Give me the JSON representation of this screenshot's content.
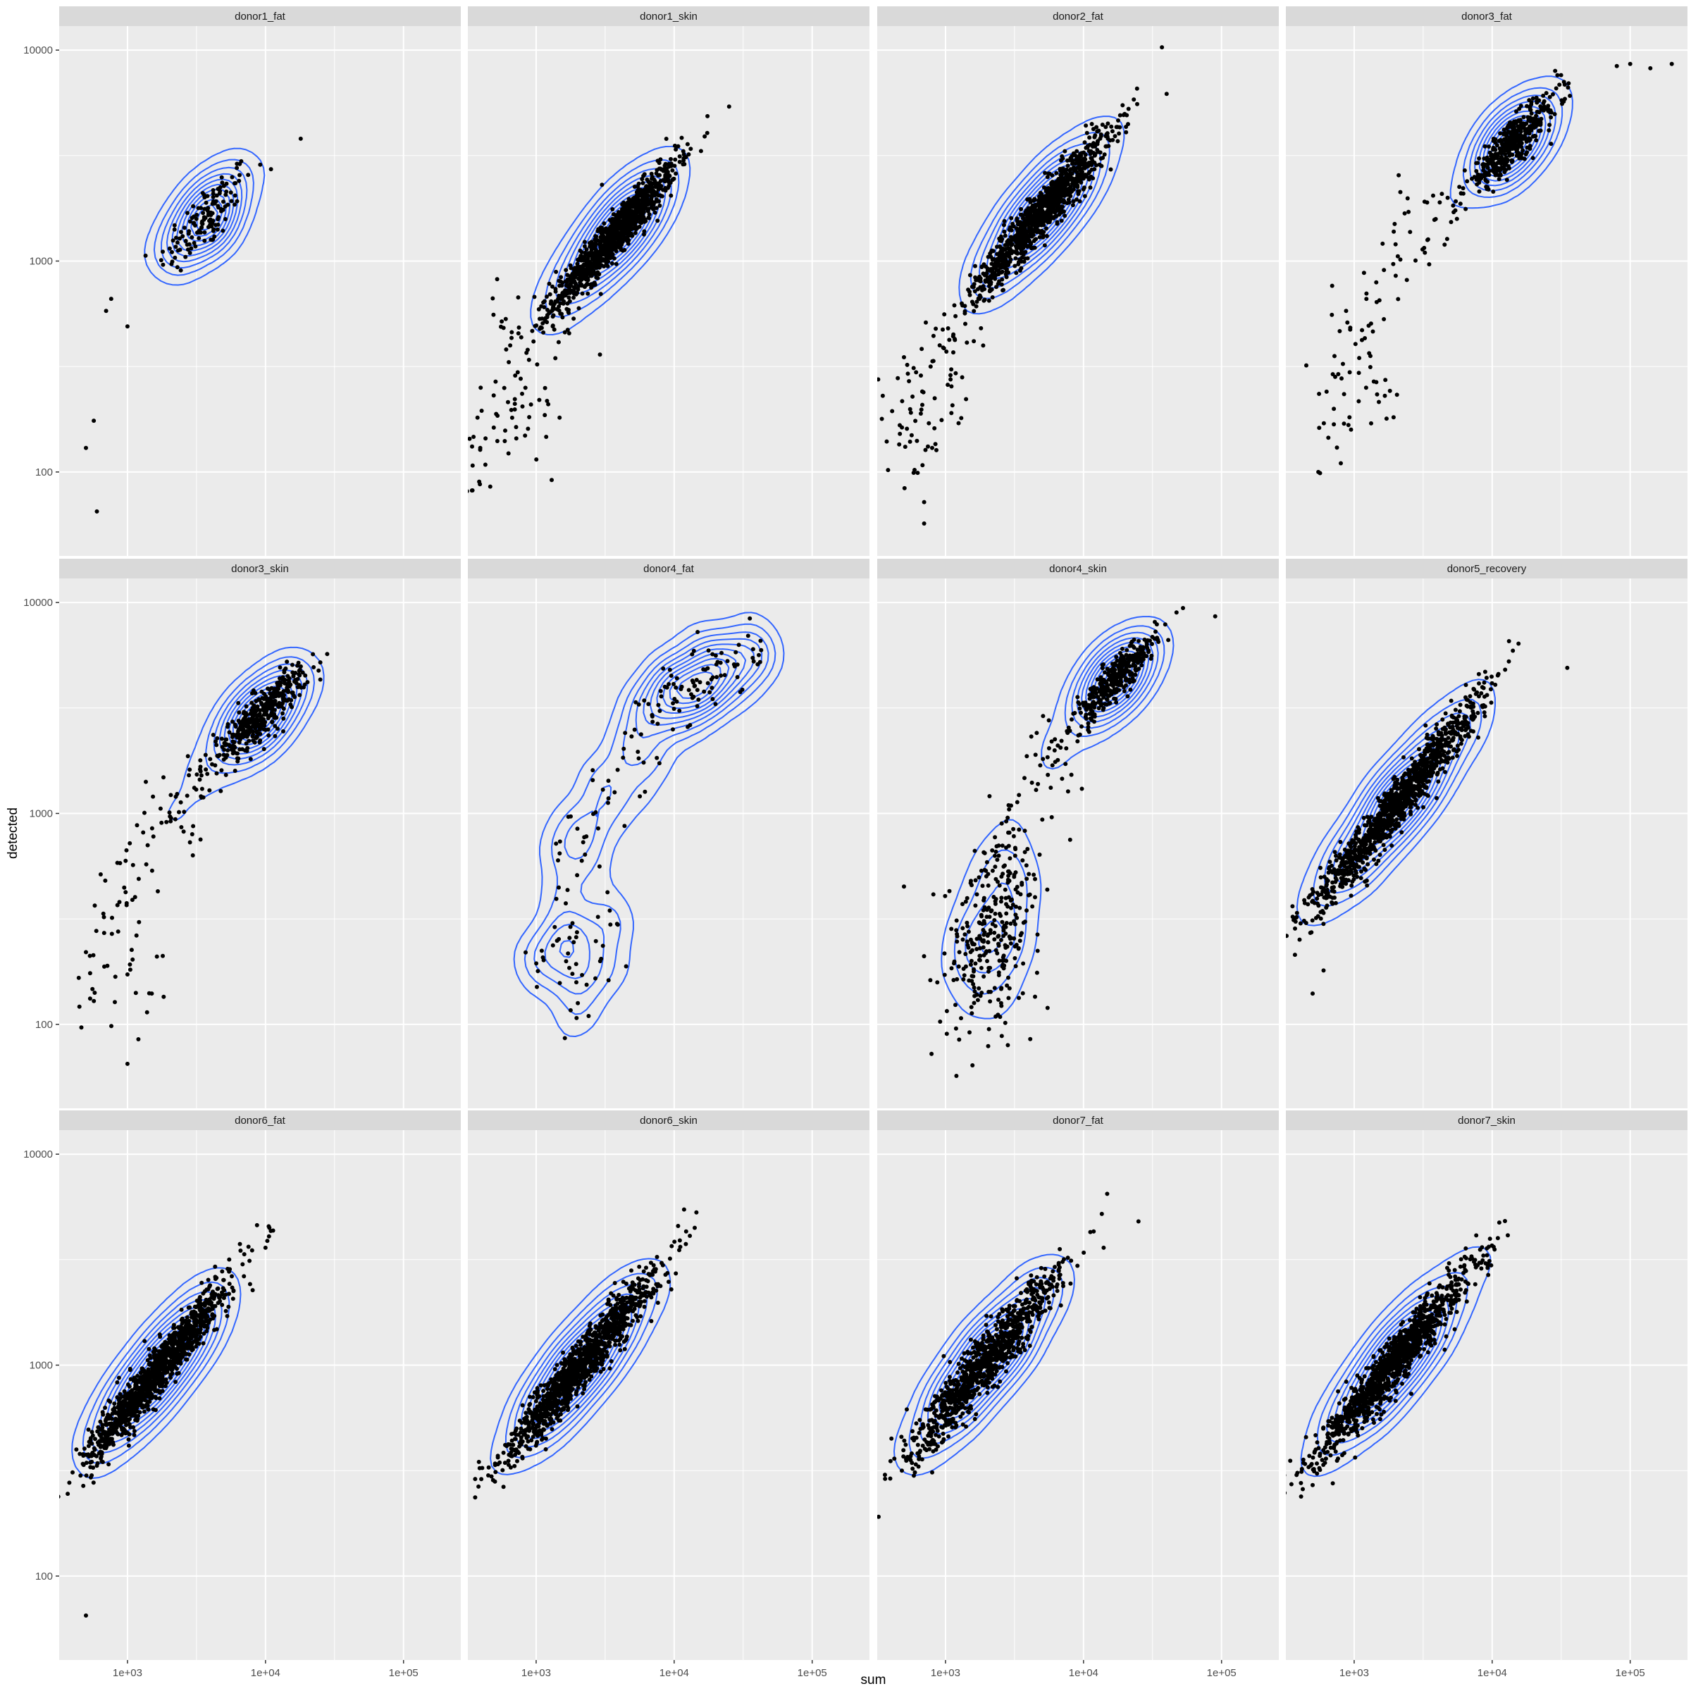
{
  "chart_data": {
    "type": "scatter",
    "facet_layout": {
      "rows": 3,
      "cols": 4
    },
    "xlabel": "sum",
    "ylabel": "detected",
    "x_scale": "log10",
    "y_scale": "log10",
    "xlim": [
      320,
      260000
    ],
    "ylim": [
      40,
      13000
    ],
    "x_ticks": [
      1000,
      10000,
      100000
    ],
    "x_tick_labels": [
      "1e+03",
      "1e+04",
      "1e+05"
    ],
    "y_ticks": [
      100,
      1000,
      10000
    ],
    "y_tick_labels": [
      "100",
      "1000",
      "10000"
    ],
    "grid": true,
    "overlay": "2d density contours",
    "colors": {
      "panel_bg": "#ebebeb",
      "grid": "#ffffff",
      "strip_bg": "#d9d9d9",
      "points": "#000000",
      "contours": "#3366ff"
    },
    "panels": [
      {
        "name": "donor1_fat",
        "n": 140,
        "clusters": [
          {
            "x": 3700,
            "y": 1600,
            "sx": 0.17,
            "sy": 0.13,
            "rho": 0.8,
            "w": 1
          }
        ],
        "extra": [
          [
            700,
            580
          ],
          [
            1000,
            490
          ],
          [
            500,
            130
          ],
          [
            600,
            65
          ],
          [
            570,
            175
          ],
          [
            18000,
            3800
          ]
        ],
        "tail": []
      },
      {
        "name": "donor1_skin",
        "n": 1100,
        "clusters": [
          {
            "x": 3800,
            "y": 1350,
            "sx": 0.22,
            "sy": 0.17,
            "rho": 0.95,
            "w": 1
          }
        ],
        "extra": [
          [
            25000,
            5400
          ],
          [
            2900,
            360
          ],
          [
            3000,
            2300
          ]
        ],
        "tail": [
          [
            750,
            370
          ],
          [
            550,
            220
          ],
          [
            420,
            140
          ],
          [
            380,
            110
          ],
          [
            1100,
            180
          ],
          [
            850,
            260
          ],
          [
            650,
            480
          ],
          [
            1400,
            560
          ]
        ]
      },
      {
        "name": "donor2_fat",
        "n": 1100,
        "clusters": [
          {
            "x": 5000,
            "y": 1700,
            "sx": 0.24,
            "sy": 0.19,
            "rho": 0.95,
            "w": 1
          }
        ],
        "extra": [
          [
            40000,
            6200
          ],
          [
            700,
            72
          ],
          [
            700,
            57
          ],
          [
            1300,
            180
          ],
          [
            800,
            130
          ],
          [
            500,
            350
          ]
        ],
        "tail": [
          [
            700,
            320
          ],
          [
            550,
            210
          ],
          [
            450,
            150
          ],
          [
            1000,
            380
          ],
          [
            950,
            190
          ],
          [
            600,
            120
          ],
          [
            1300,
            520
          ]
        ]
      },
      {
        "name": "donor3_fat",
        "n": 450,
        "clusters": [
          {
            "x": 14000,
            "y": 3600,
            "sx": 0.17,
            "sy": 0.12,
            "rho": 0.9,
            "w": 1
          }
        ],
        "extra": [
          [
            100000,
            8600
          ],
          [
            140000,
            8200
          ],
          [
            200000,
            8600
          ],
          [
            80000,
            8400
          ],
          [
            450,
            320
          ],
          [
            550,
            100
          ],
          [
            800,
            110
          ]
        ],
        "tail": [
          [
            3000,
            1600
          ],
          [
            2000,
            1000
          ],
          [
            1200,
            600
          ],
          [
            900,
            300
          ],
          [
            700,
            170
          ],
          [
            1500,
            220
          ],
          [
            1000,
            420
          ],
          [
            4500,
            1200
          ]
        ]
      },
      {
        "name": "donor3_skin",
        "n": 420,
        "clusters": [
          {
            "x": 9000,
            "y": 2900,
            "sx": 0.17,
            "sy": 0.12,
            "rho": 0.9,
            "w": 1
          }
        ],
        "extra": [
          [
            28000,
            5700
          ],
          [
            500,
            220
          ],
          [
            1000,
            65
          ],
          [
            1200,
            85
          ],
          [
            1500,
            140
          ]
        ],
        "tail": [
          [
            3500,
            1500
          ],
          [
            2000,
            1000
          ],
          [
            1300,
            700
          ],
          [
            1000,
            400
          ],
          [
            700,
            260
          ],
          [
            600,
            150
          ],
          [
            1200,
            180
          ],
          [
            2500,
            800
          ]
        ]
      },
      {
        "name": "donor4_fat",
        "n": 90,
        "clusters": [
          {
            "x": 16000,
            "y": 4200,
            "sx": 0.22,
            "sy": 0.13,
            "rho": 0.7,
            "w": 1
          }
        ],
        "extra": [],
        "tail": [
          [
            5000,
            2000
          ],
          [
            3000,
            1100
          ],
          [
            2000,
            600
          ],
          [
            1600,
            300
          ],
          [
            1200,
            200
          ],
          [
            3500,
            250
          ],
          [
            2000,
            140
          ]
        ]
      },
      {
        "name": "donor4_skin",
        "n": 650,
        "clusters": [
          {
            "x": 17000,
            "y": 4300,
            "sx": 0.15,
            "sy": 0.11,
            "rho": 0.9,
            "w": 0.55
          },
          {
            "x": 2200,
            "y": 280,
            "sx": 0.17,
            "sy": 0.22,
            "rho": 0.3,
            "w": 0.45
          }
        ],
        "extra": [
          [
            90000,
            8600
          ],
          [
            500,
            450
          ],
          [
            1200,
            57
          ],
          [
            8000,
            750
          ]
        ],
        "tail": [
          [
            6000,
            2000
          ],
          [
            4000,
            1200
          ],
          [
            3000,
            800
          ],
          [
            2500,
            600
          ],
          [
            7000,
            1700
          ]
        ]
      },
      {
        "name": "donor5_recovery",
        "n": 1200,
        "clusters": [
          {
            "x": 2000,
            "y": 1100,
            "sx": 0.3,
            "sy": 0.25,
            "rho": 0.97,
            "w": 1
          }
        ],
        "extra": [
          [
            35000,
            4900
          ],
          [
            500,
            140
          ],
          [
            600,
            180
          ]
        ],
        "tail": []
      },
      {
        "name": "donor6_fat",
        "n": 1200,
        "clusters": [
          {
            "x": 1700,
            "y": 950,
            "sx": 0.25,
            "sy": 0.21,
            "rho": 0.96,
            "w": 1
          }
        ],
        "extra": [
          [
            8000,
            3500
          ],
          [
            10000,
            3600
          ],
          [
            500,
            65
          ],
          [
            400,
            310
          ],
          [
            550,
            300
          ]
        ],
        "tail": []
      },
      {
        "name": "donor6_skin",
        "n": 1200,
        "clusters": [
          {
            "x": 2100,
            "y": 1000,
            "sx": 0.27,
            "sy": 0.22,
            "rho": 0.96,
            "w": 1
          }
        ],
        "extra": [
          [
            13000,
            4100
          ],
          [
            11000,
            3900
          ],
          [
            580,
            265
          ],
          [
            450,
            300
          ]
        ],
        "tail": []
      },
      {
        "name": "donor7_fat",
        "n": 1000,
        "clusters": [
          {
            "x": 2000,
            "y": 1050,
            "sx": 0.27,
            "sy": 0.22,
            "rho": 0.95,
            "w": 1
          }
        ],
        "extra": [
          [
            25000,
            4800
          ],
          [
            14000,
            3600
          ],
          [
            600,
            310
          ],
          [
            800,
            310
          ]
        ],
        "tail": []
      },
      {
        "name": "donor7_skin",
        "n": 1200,
        "clusters": [
          {
            "x": 2000,
            "y": 1050,
            "sx": 0.27,
            "sy": 0.22,
            "rho": 0.96,
            "w": 1
          }
        ],
        "extra": [
          [
            11000,
            4000
          ],
          [
            500,
            270
          ],
          [
            700,
            275
          ]
        ],
        "tail": []
      }
    ]
  }
}
